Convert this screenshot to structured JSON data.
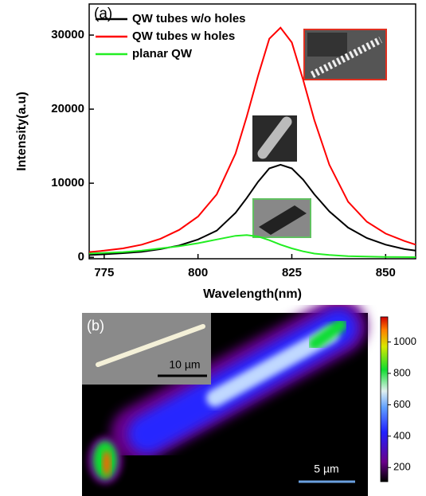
{
  "chart_data": [
    {
      "type": "line",
      "panel_label": "(a)",
      "x_label": "Wavelength(nm)",
      "y_label": "Intensity(a.u)",
      "x": [
        771,
        775,
        780,
        785,
        790,
        795,
        800,
        805,
        810,
        813,
        816,
        819,
        822,
        825,
        828,
        831,
        835,
        840,
        845,
        850,
        855,
        858
      ],
      "series": [
        {
          "name": "QW tubes w/o holes",
          "color": "#000000",
          "values": [
            300,
            400,
            550,
            750,
            1100,
            1600,
            2400,
            3600,
            6000,
            8000,
            10200,
            12000,
            12500,
            12000,
            10500,
            8500,
            6200,
            4000,
            2600,
            1700,
            1100,
            900
          ]
        },
        {
          "name": "QW tubes w  holes",
          "color": "#ff0000",
          "values": [
            700,
            900,
            1200,
            1700,
            2500,
            3700,
            5500,
            8500,
            14000,
            19000,
            24500,
            29500,
            31000,
            29000,
            24000,
            18500,
            12500,
            7500,
            4800,
            3200,
            2200,
            1700
          ]
        },
        {
          "name": "planar QW",
          "color": "#22ee22",
          "values": [
            500,
            600,
            700,
            900,
            1200,
            1500,
            1900,
            2400,
            2900,
            3000,
            2800,
            2300,
            1700,
            1200,
            800,
            500,
            300,
            150,
            100,
            50,
            30,
            20
          ]
        }
      ],
      "xlim": [
        771,
        858
      ],
      "xticks": [
        775,
        800,
        825,
        850
      ],
      "ylim": [
        -200,
        34200
      ],
      "yticks": [
        0,
        10000,
        20000,
        30000
      ],
      "legend": "upper left"
    },
    {
      "type": "heatmap",
      "panel_label": "(b)",
      "inset_scale": "10 µm",
      "scale_bar": "5 µm",
      "clim": [
        110,
        1160
      ],
      "cticks": [
        200,
        400,
        600,
        800,
        1000
      ]
    }
  ]
}
